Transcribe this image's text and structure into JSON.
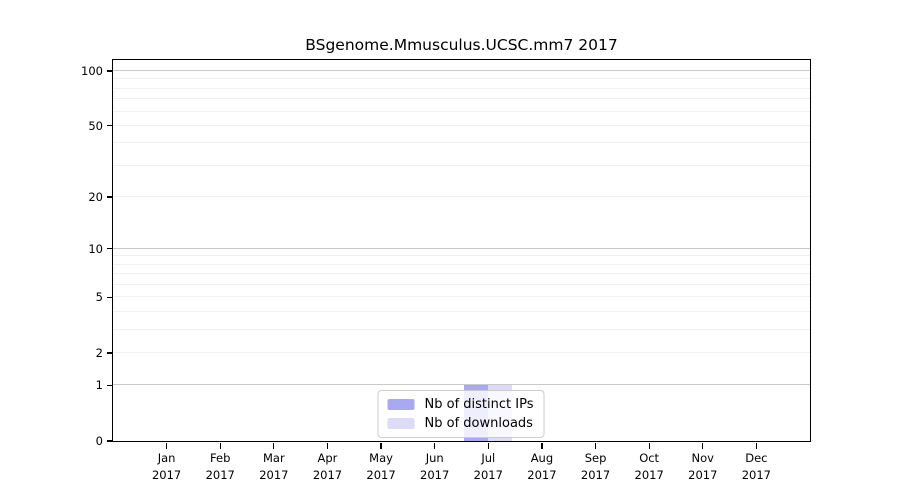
{
  "chart_data": {
    "type": "bar",
    "title": "BSgenome.Mmusculus.UCSC.mm7 2017",
    "categories": [
      "Jan",
      "Feb",
      "Mar",
      "Apr",
      "May",
      "Jun",
      "Jul",
      "Aug",
      "Sep",
      "Oct",
      "Nov",
      "Dec"
    ],
    "xtick_year": "2017",
    "series": [
      {
        "name": "Nb of distinct IPs",
        "color": "#a9a9f0",
        "values": [
          0,
          0,
          0,
          0,
          0,
          0,
          1,
          0,
          0,
          0,
          0,
          0
        ]
      },
      {
        "name": "Nb of downloads",
        "color": "#dcdcf8",
        "values": [
          0,
          0,
          0,
          0,
          0,
          0,
          1,
          0,
          0,
          0,
          0,
          0
        ]
      }
    ],
    "yscale": "log1p",
    "ylim": [
      0,
      115
    ],
    "ytick_values": [
      0,
      1,
      2,
      5,
      10,
      20,
      50,
      100
    ],
    "grid": true,
    "grid_major_values": [
      1,
      10,
      100
    ],
    "grid_minor_values": [
      2,
      3,
      4,
      5,
      6,
      7,
      8,
      9,
      20,
      30,
      40,
      50,
      60,
      70,
      80,
      90
    ],
    "legend_position": "lower center",
    "colors": {
      "grid_major": "#c9c9c9",
      "grid_minor": "#efefef",
      "spine": "#000000",
      "text": "#000000"
    }
  }
}
